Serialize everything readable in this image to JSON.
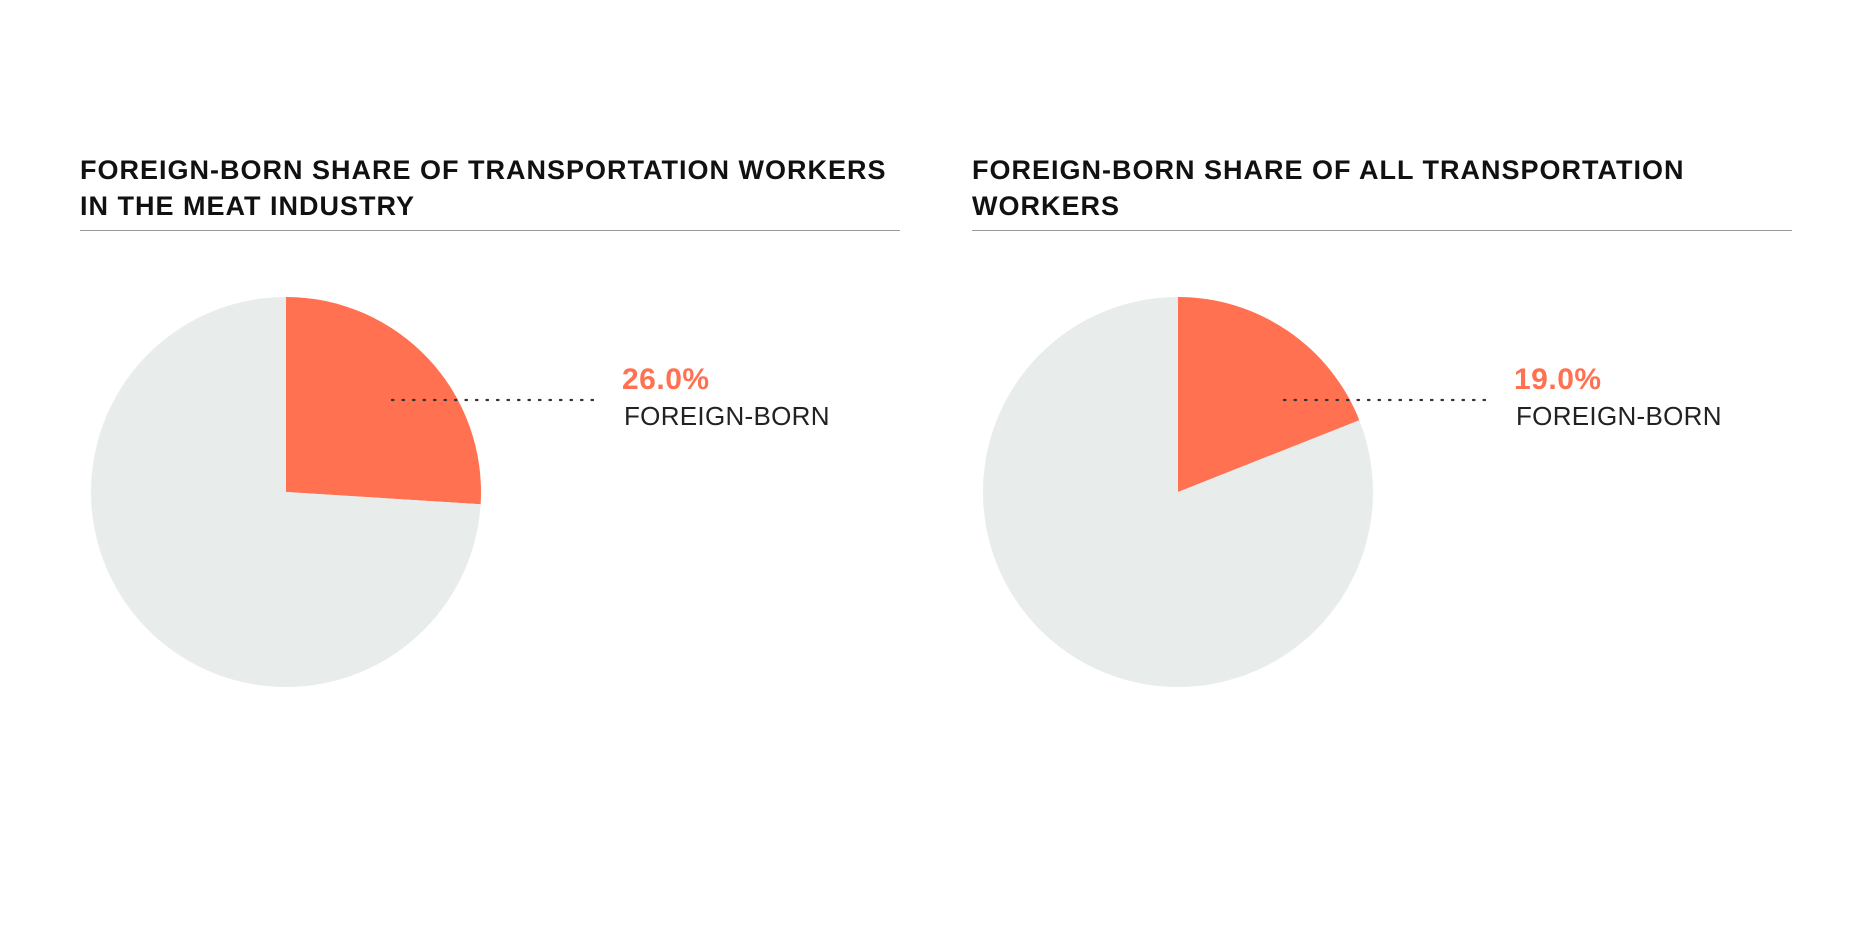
{
  "colors": {
    "accent": "#FF7150",
    "remainder": "#E8ECEB",
    "title_rule": "#9A9A9A",
    "text": "#111111"
  },
  "chart_data": [
    {
      "type": "pie",
      "title": "FOREIGN-BORN SHARE OF TRANSPORTATION WORKERS IN THE MEAT INDUSTRY",
      "slices": [
        {
          "label": "FOREIGN-BORN",
          "value": 26.0,
          "display": "26.0%",
          "color": "#FF7150"
        },
        {
          "label": "",
          "value": 74.0,
          "color": "#E8ECEB"
        }
      ]
    },
    {
      "type": "pie",
      "title": "FOREIGN-BORN SHARE OF ALL TRANSPORTATION WORKERS",
      "slices": [
        {
          "label": "FOREIGN-BORN",
          "value": 19.0,
          "display": "19.0%",
          "color": "#FF7150"
        },
        {
          "label": "",
          "value": 81.0,
          "color": "#E8ECEB"
        }
      ]
    }
  ]
}
